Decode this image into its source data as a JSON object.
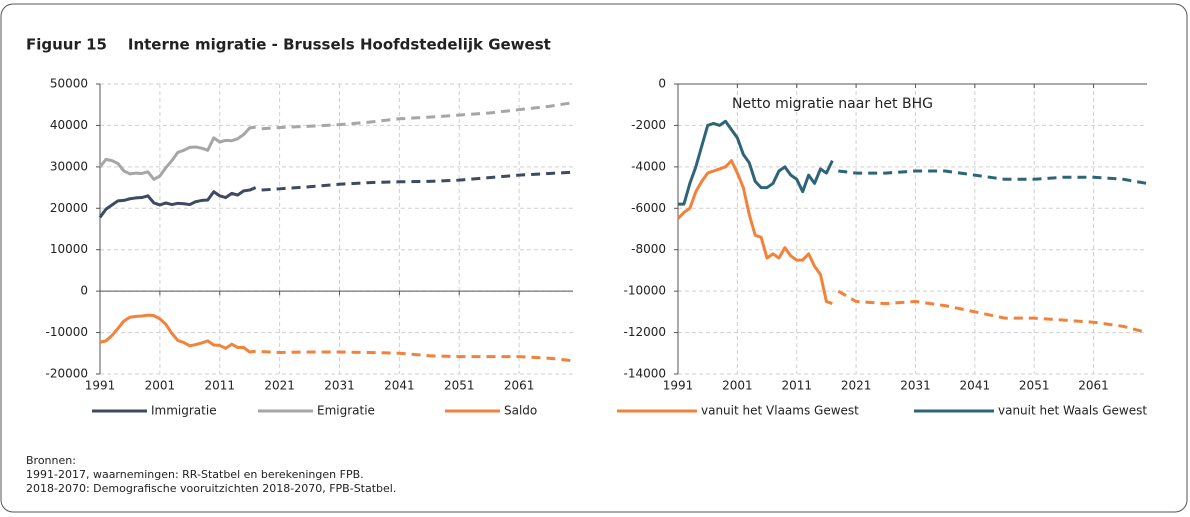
{
  "title": "Figuur 15    Interne migratie - Brussels Hoofdstedelijk Gewest",
  "sources": [
    "Bronnen:",
    "1991-2017, waarnemingen: RR-Statbel en berekeningen FPB.",
    "2018-2070: Demografische vooruitzichten 2018-2070, FPB-Statbel."
  ],
  "chart_data": [
    {
      "type": "line",
      "x": [
        1991,
        1992,
        1993,
        1994,
        1995,
        1996,
        1997,
        1998,
        1999,
        2000,
        2001,
        2002,
        2003,
        2004,
        2005,
        2006,
        2007,
        2008,
        2009,
        2010,
        2011,
        2012,
        2013,
        2014,
        2015,
        2016,
        2017
      ],
      "x_projection": [
        2018,
        2021,
        2026,
        2031,
        2036,
        2041,
        2046,
        2051,
        2056,
        2061,
        2066,
        2070
      ],
      "xlim": [
        1991,
        2070
      ],
      "xticks": [
        1991,
        2001,
        2011,
        2021,
        2031,
        2041,
        2051,
        2061
      ],
      "ylim": [
        -20000,
        50000
      ],
      "yticks": [
        -20000,
        -10000,
        0,
        10000,
        20000,
        30000,
        40000,
        50000
      ],
      "grid": true,
      "legend": "bottom",
      "series": [
        {
          "name": "Immigratie",
          "color": "#3d4a5f",
          "values": [
            17800,
            19800,
            20800,
            21800,
            21900,
            22300,
            22500,
            22600,
            23000,
            21300,
            20800,
            21300,
            20900,
            21200,
            21100,
            20900,
            21600,
            21900,
            22000,
            24000,
            23000,
            22600,
            23600,
            23200,
            24200,
            24400,
            25000
          ],
          "projection": [
            24400,
            24700,
            25200,
            25800,
            26200,
            26400,
            26500,
            26800,
            27400,
            28000,
            28400,
            28700
          ]
        },
        {
          "name": "Emigratie",
          "color": "#a6a6a6",
          "values": [
            30000,
            31800,
            31500,
            30800,
            29000,
            28300,
            28500,
            28400,
            28800,
            27000,
            27800,
            29800,
            31500,
            33500,
            34000,
            34700,
            34800,
            34500,
            34000,
            37000,
            36000,
            36400,
            36300,
            36800,
            37800,
            39400,
            39600
          ],
          "projection": [
            39200,
            39500,
            39800,
            40200,
            40800,
            41600,
            42000,
            42500,
            43000,
            43800,
            44600,
            45500
          ]
        },
        {
          "name": "Saldo",
          "color": "#f2823a",
          "values": [
            -12300,
            -12000,
            -10700,
            -9000,
            -7200,
            -6300,
            -6100,
            -6000,
            -5800,
            -5900,
            -6700,
            -8000,
            -10200,
            -11900,
            -12400,
            -13200,
            -12900,
            -12500,
            -12000,
            -13000,
            -13100,
            -13800,
            -12800,
            -13600,
            -13600,
            -14700,
            -14500
          ],
          "projection": [
            -14600,
            -14800,
            -14700,
            -14700,
            -14800,
            -15000,
            -15600,
            -15800,
            -15800,
            -15800,
            -16200,
            -16800
          ]
        }
      ]
    },
    {
      "type": "line",
      "title": "Netto migratie naar het BHG",
      "x": [
        1991,
        1992,
        1993,
        1994,
        1995,
        1996,
        1997,
        1998,
        1999,
        2000,
        2001,
        2002,
        2003,
        2004,
        2005,
        2006,
        2007,
        2008,
        2009,
        2010,
        2011,
        2012,
        2013,
        2014,
        2015,
        2016,
        2017
      ],
      "x_projection": [
        2018,
        2021,
        2026,
        2031,
        2036,
        2041,
        2046,
        2051,
        2056,
        2061,
        2066,
        2070
      ],
      "xlim": [
        1991,
        2070
      ],
      "xticks": [
        1991,
        2001,
        2011,
        2021,
        2031,
        2041,
        2051,
        2061
      ],
      "ylim": [
        -14000,
        0
      ],
      "yticks": [
        -14000,
        -12000,
        -10000,
        -8000,
        -6000,
        -4000,
        -2000,
        0
      ],
      "grid": true,
      "legend": "bottom",
      "series": [
        {
          "name": "vanuit het Vlaams Gewest",
          "color": "#f2823a",
          "values": [
            -6500,
            -6200,
            -6000,
            -5200,
            -4700,
            -4300,
            -4200,
            -4100,
            -4000,
            -3700,
            -4300,
            -5000,
            -6300,
            -7300,
            -7400,
            -8400,
            -8200,
            -8400,
            -7900,
            -8300,
            -8500,
            -8500,
            -8200,
            -8800,
            -9200,
            -10500,
            -10600
          ],
          "projection": [
            -10000,
            -10500,
            -10600,
            -10500,
            -10700,
            -11000,
            -11300,
            -11300,
            -11400,
            -11500,
            -11700,
            -12000
          ]
        },
        {
          "name": "vanuit het Waals Gewest",
          "color": "#2e6478",
          "values": [
            -5800,
            -5800,
            -4800,
            -4000,
            -3000,
            -2000,
            -1900,
            -2000,
            -1800,
            -2200,
            -2600,
            -3400,
            -3800,
            -4700,
            -5000,
            -5000,
            -4800,
            -4200,
            -4000,
            -4400,
            -4600,
            -5200,
            -4400,
            -4800,
            -4100,
            -4300,
            -3700
          ],
          "projection": [
            -4200,
            -4300,
            -4300,
            -4200,
            -4200,
            -4400,
            -4600,
            -4600,
            -4500,
            -4500,
            -4600,
            -4800
          ]
        }
      ]
    }
  ]
}
